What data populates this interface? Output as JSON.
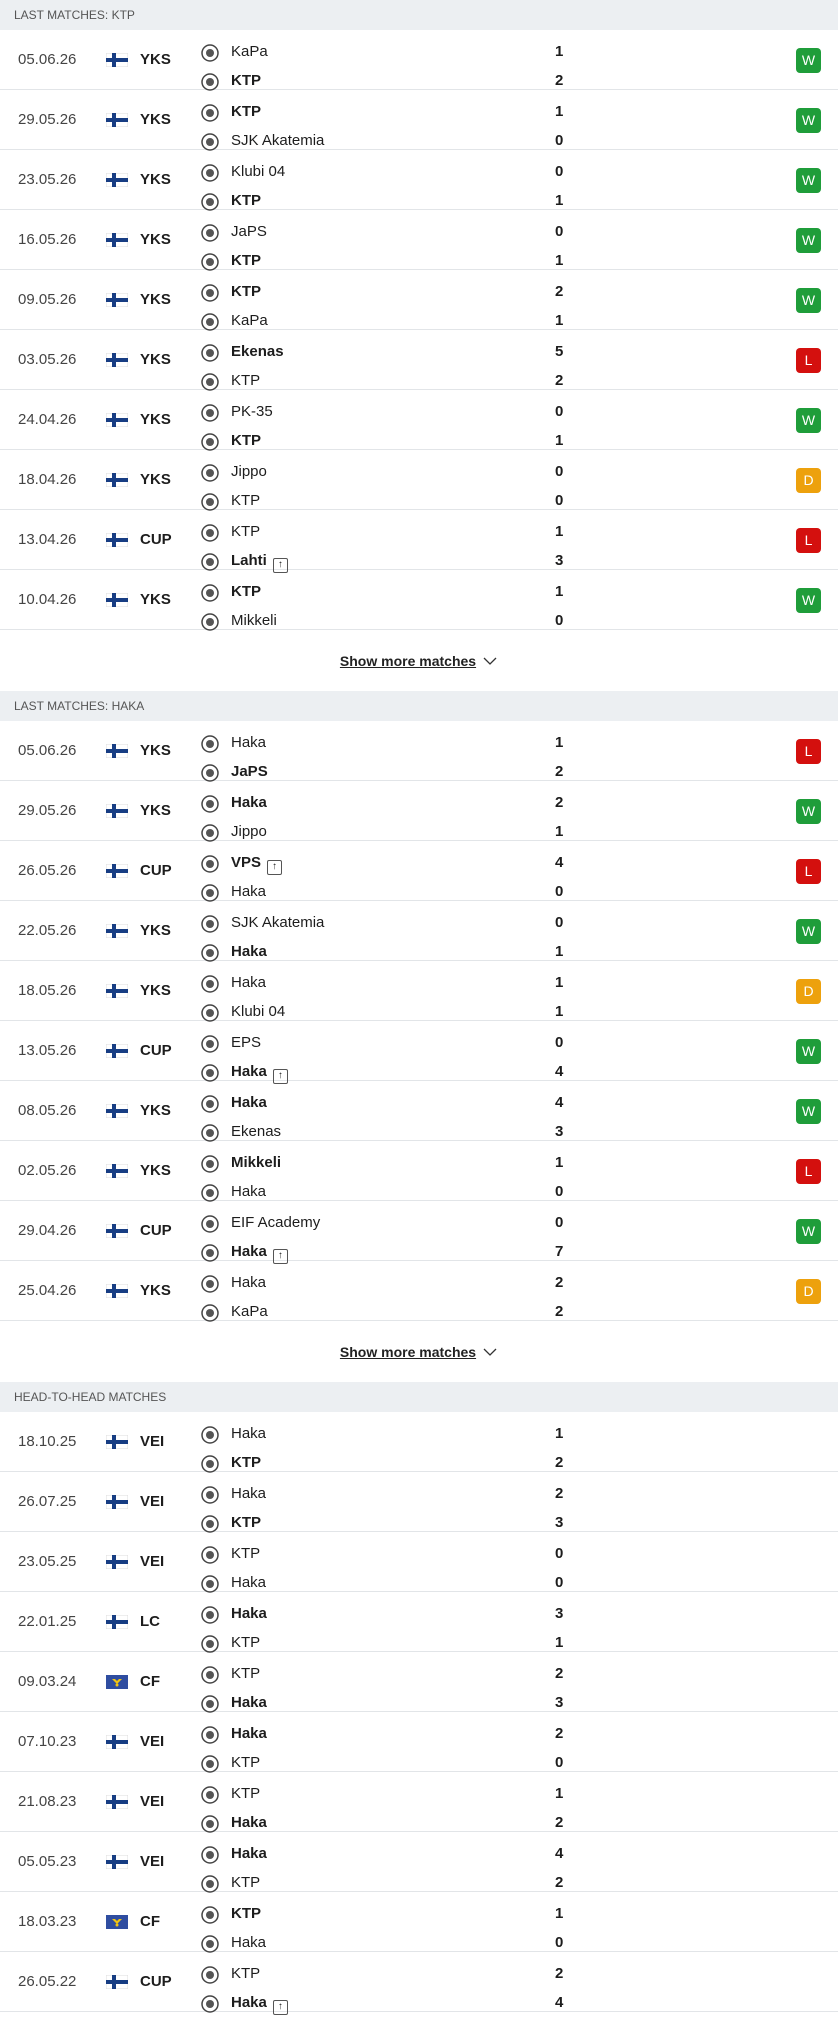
{
  "sections": [
    {
      "title": "LAST MATCHES: KTP",
      "show_more": "Show more matches",
      "matches": [
        {
          "date": "05.06.26",
          "competition": "YKS",
          "home": "KaPa",
          "away": "KTP",
          "home_score": 1,
          "away_score": 2,
          "result": "W"
        },
        {
          "date": "29.05.26",
          "competition": "YKS",
          "home": "KTP",
          "away": "SJK Akatemia",
          "home_score": 1,
          "away_score": 0,
          "result": "W"
        },
        {
          "date": "23.05.26",
          "competition": "YKS",
          "home": "Klubi 04",
          "away": "KTP",
          "home_score": 0,
          "away_score": 1,
          "result": "W"
        },
        {
          "date": "16.05.26",
          "competition": "YKS",
          "home": "JaPS",
          "away": "KTP",
          "home_score": 0,
          "away_score": 1,
          "result": "W"
        },
        {
          "date": "09.05.26",
          "competition": "YKS",
          "home": "KTP",
          "away": "KaPa",
          "home_score": 2,
          "away_score": 1,
          "result": "W"
        },
        {
          "date": "03.05.26",
          "competition": "YKS",
          "home": "Ekenas",
          "away": "KTP",
          "home_score": 5,
          "away_score": 2,
          "result": "L"
        },
        {
          "date": "24.04.26",
          "competition": "YKS",
          "home": "PK-35",
          "away": "KTP",
          "home_score": 0,
          "away_score": 1,
          "result": "W"
        },
        {
          "date": "18.04.26",
          "competition": "YKS",
          "home": "Jippo",
          "away": "KTP",
          "home_score": 0,
          "away_score": 0,
          "result": "D"
        },
        {
          "date": "13.04.26",
          "competition": "CUP",
          "home": "KTP",
          "away": "Lahti",
          "home_score": 1,
          "away_score": 3,
          "result": "L"
        },
        {
          "date": "10.04.26",
          "competition": "YKS",
          "home": "KTP",
          "away": "Mikkeli",
          "home_score": 1,
          "away_score": 0,
          "result": "W"
        }
      ]
    },
    {
      "title": "LAST MATCHES: HAKA",
      "show_more": "Show more matches",
      "matches": [
        {
          "date": "05.06.26",
          "competition": "YKS",
          "home": "Haka",
          "away": "JaPS",
          "home_score": 1,
          "away_score": 2,
          "result": "L"
        },
        {
          "date": "29.05.26",
          "competition": "YKS",
          "home": "Haka",
          "away": "Jippo",
          "home_score": 2,
          "away_score": 1,
          "result": "W"
        },
        {
          "date": "26.05.26",
          "competition": "CUP",
          "home": "VPS",
          "away": "Haka",
          "home_score": 4,
          "away_score": 0,
          "result": "L"
        },
        {
          "date": "22.05.26",
          "competition": "YKS",
          "home": "SJK Akatemia",
          "away": "Haka",
          "home_score": 0,
          "away_score": 1,
          "result": "W"
        },
        {
          "date": "18.05.26",
          "competition": "YKS",
          "home": "Haka",
          "away": "Klubi 04",
          "home_score": 1,
          "away_score": 1,
          "result": "D"
        },
        {
          "date": "13.05.26",
          "competition": "CUP",
          "home": "EPS",
          "away": "Haka",
          "home_score": 0,
          "away_score": 4,
          "result": "W"
        },
        {
          "date": "08.05.26",
          "competition": "YKS",
          "home": "Haka",
          "away": "Ekenas",
          "home_score": 4,
          "away_score": 3,
          "result": "W"
        },
        {
          "date": "02.05.26",
          "competition": "YKS",
          "home": "Mikkeli",
          "away": "Haka",
          "home_score": 1,
          "away_score": 0,
          "result": "L"
        },
        {
          "date": "29.04.26",
          "competition": "CUP",
          "home": "EIF Academy",
          "away": "Haka",
          "home_score": 0,
          "away_score": 7,
          "result": "W"
        },
        {
          "date": "25.04.26",
          "competition": "YKS",
          "home": "Haka",
          "away": "KaPa",
          "home_score": 2,
          "away_score": 2,
          "result": "D"
        }
      ]
    },
    {
      "title": "HEAD-TO-HEAD MATCHES",
      "matches": [
        {
          "date": "18.10.25",
          "competition": "VEI",
          "home": "Haka",
          "away": "KTP",
          "home_score": 1,
          "away_score": 2
        },
        {
          "date": "26.07.25",
          "competition": "VEI",
          "home": "Haka",
          "away": "KTP",
          "home_score": 2,
          "away_score": 3
        },
        {
          "date": "23.05.25",
          "competition": "VEI",
          "home": "KTP",
          "away": "Haka",
          "home_score": 0,
          "away_score": 0
        },
        {
          "date": "22.01.25",
          "competition": "LC",
          "home": "Haka",
          "away": "KTP",
          "home_score": 3,
          "away_score": 1
        },
        {
          "date": "09.03.24",
          "competition": "CF",
          "home": "KTP",
          "away": "Haka",
          "home_score": 2,
          "away_score": 3
        },
        {
          "date": "07.10.23",
          "competition": "VEI",
          "home": "Haka",
          "away": "KTP",
          "home_score": 2,
          "away_score": 0
        },
        {
          "date": "21.08.23",
          "competition": "VEI",
          "home": "KTP",
          "away": "Haka",
          "home_score": 1,
          "away_score": 2
        },
        {
          "date": "05.05.23",
          "competition": "VEI",
          "home": "Haka",
          "away": "KTP",
          "home_score": 4,
          "away_score": 2
        },
        {
          "date": "18.03.23",
          "competition": "CF",
          "home": "KTP",
          "away": "Haka",
          "home_score": 1,
          "away_score": 0
        },
        {
          "date": "26.05.22",
          "competition": "CUP",
          "home": "KTP",
          "away": "Haka",
          "home_score": 2,
          "away_score": 4
        }
      ]
    }
  ],
  "result_colors": {
    "W": "#1f9d3a",
    "L": "#d4100e",
    "D": "#eda10d"
  }
}
